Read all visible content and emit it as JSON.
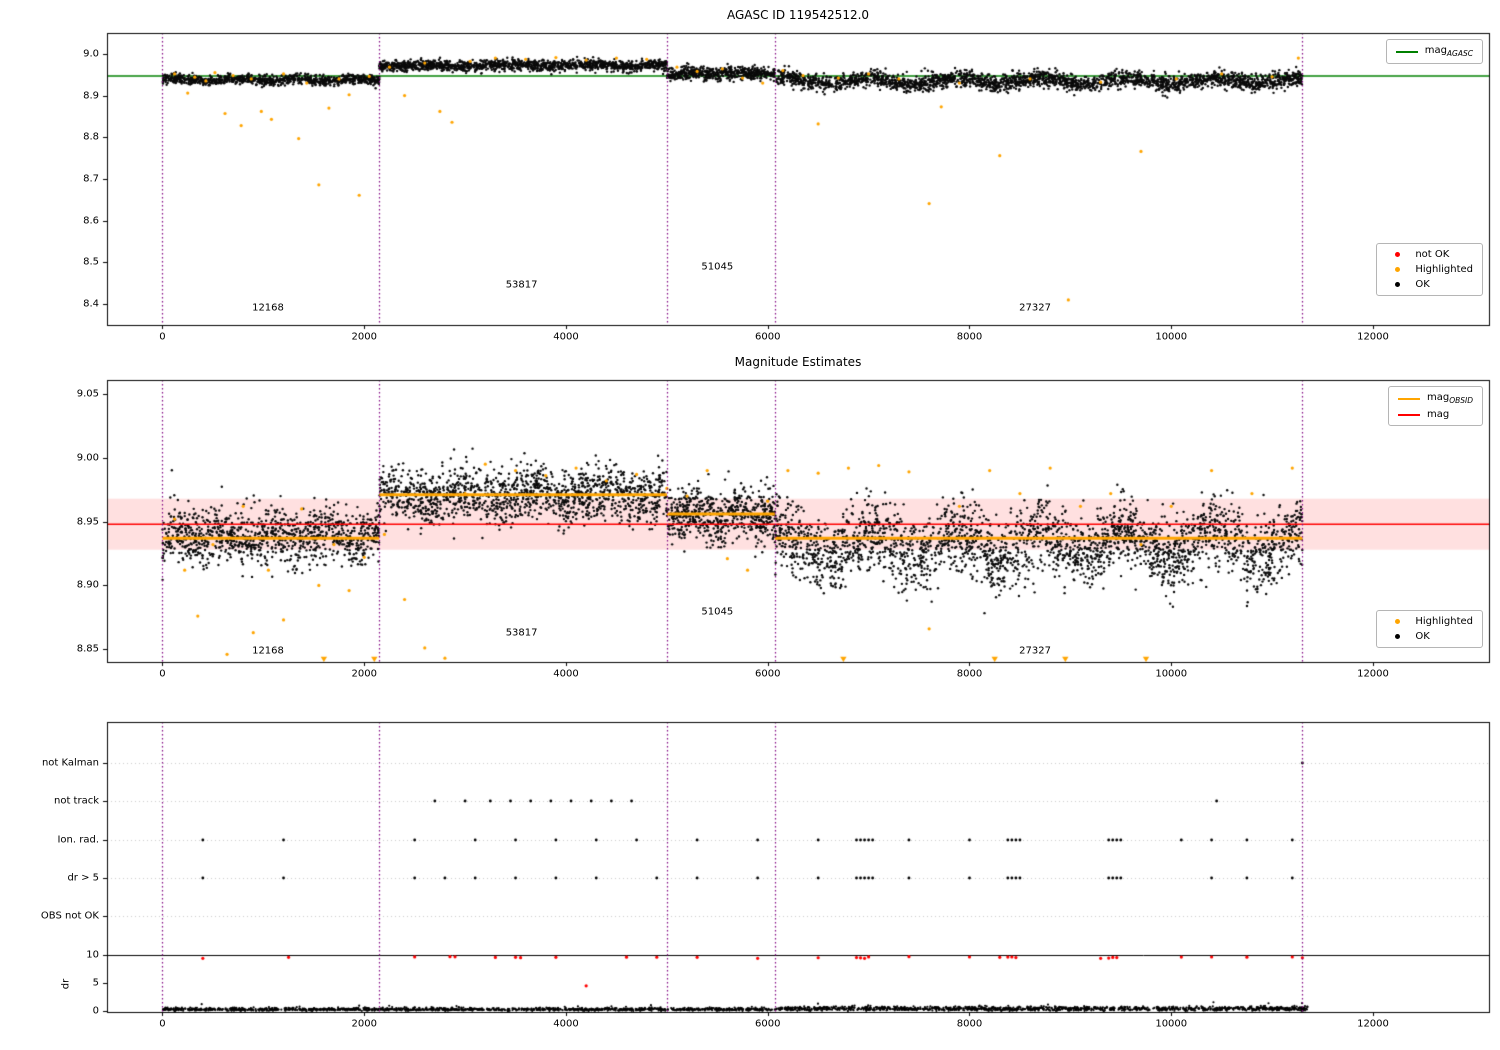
{
  "colors": {
    "ok": "#0a0a0a",
    "highlighted": "#ffa500",
    "not_ok": "#ff0000",
    "mag_agasc": "#008000",
    "mag": "#ff0000",
    "mag_obsid": "#ffa500",
    "boundary": "#800080",
    "band": "rgba(255,0,0,0.12)"
  },
  "chart_data": [
    {
      "type": "scatter",
      "title": "AGASC ID 119542512.0",
      "xlim": [
        -550,
        13150
      ],
      "ylim": [
        8.35,
        9.05
      ],
      "xticks": [
        0,
        2000,
        4000,
        6000,
        8000,
        10000,
        12000
      ],
      "xtick_labels": [
        "0",
        "2000",
        "4000",
        "6000",
        "8000",
        "10000",
        "12000"
      ],
      "yticks": [
        9.0,
        8.9,
        8.8,
        8.7,
        8.6,
        8.5,
        8.4
      ],
      "ytick_labels": [
        "9.0",
        "8.9",
        "8.8",
        "8.7",
        "8.6",
        "8.5",
        "8.4"
      ],
      "mag_agasc_line": {
        "value": 8.947,
        "color": "#008000"
      },
      "obsid_boundaries": [
        0,
        2150,
        5000,
        6070,
        11300
      ],
      "segments": [
        {
          "x0": 0,
          "x1": 2150,
          "n": 950,
          "mean": 8.938,
          "std": 0.006,
          "wave_amp": 0.003,
          "wave_period": 600
        },
        {
          "x0": 2150,
          "x1": 5000,
          "n": 1350,
          "mean": 8.972,
          "std": 0.0065,
          "wave_amp": 0.002,
          "wave_period": 800
        },
        {
          "x0": 5000,
          "x1": 6070,
          "n": 560,
          "mean": 8.953,
          "std": 0.008,
          "wave_amp": 0.002,
          "wave_period": 400
        },
        {
          "x0": 6070,
          "x1": 11300,
          "n": 2450,
          "mean": 8.935,
          "std": 0.01,
          "wave_amp": 0.007,
          "wave_period": 850
        }
      ],
      "highlighted": [
        [
          120,
          8.952
        ],
        [
          250,
          8.906
        ],
        [
          320,
          8.944
        ],
        [
          430,
          8.935
        ],
        [
          520,
          8.955
        ],
        [
          620,
          8.857
        ],
        [
          700,
          8.948
        ],
        [
          780,
          8.828
        ],
        [
          880,
          8.94
        ],
        [
          980,
          8.862
        ],
        [
          1080,
          8.843
        ],
        [
          1200,
          8.952
        ],
        [
          1350,
          8.797
        ],
        [
          1430,
          8.93
        ],
        [
          1550,
          8.686
        ],
        [
          1650,
          8.87
        ],
        [
          1750,
          8.94
        ],
        [
          1850,
          8.902
        ],
        [
          1950,
          8.661
        ],
        [
          2050,
          8.946
        ],
        [
          2250,
          8.968
        ],
        [
          2400,
          8.9
        ],
        [
          2600,
          8.978
        ],
        [
          2750,
          8.862
        ],
        [
          2870,
          8.836
        ],
        [
          3050,
          8.982
        ],
        [
          3300,
          8.99
        ],
        [
          3600,
          8.987
        ],
        [
          3900,
          8.991
        ],
        [
          4200,
          8.985
        ],
        [
          4500,
          8.99
        ],
        [
          4800,
          8.987
        ],
        [
          5100,
          8.968
        ],
        [
          5300,
          8.958
        ],
        [
          5550,
          8.964
        ],
        [
          5750,
          8.942
        ],
        [
          5950,
          8.93
        ],
        [
          6150,
          8.96
        ],
        [
          6350,
          8.948
        ],
        [
          6500,
          8.832
        ],
        [
          6700,
          8.942
        ],
        [
          7000,
          8.952
        ],
        [
          7300,
          8.94
        ],
        [
          7600,
          8.641
        ],
        [
          7720,
          8.873
        ],
        [
          7900,
          8.93
        ],
        [
          8300,
          8.756
        ],
        [
          8600,
          8.94
        ],
        [
          8980,
          8.41
        ],
        [
          9300,
          8.932
        ],
        [
          9700,
          8.766
        ],
        [
          10050,
          8.94
        ],
        [
          10500,
          8.952
        ],
        [
          11000,
          8.945
        ],
        [
          11260,
          8.99
        ]
      ],
      "annotations": [
        {
          "text": "12168",
          "x": 1046,
          "y": 8.391
        },
        {
          "text": "53817",
          "x": 3560,
          "y": 8.446
        },
        {
          "text": "51045",
          "x": 5500,
          "y": 8.489
        },
        {
          "text": "27327",
          "x": 8650,
          "y": 8.391
        }
      ],
      "legend_top": [
        {
          "glyph": "line",
          "color": "#008000",
          "label": "mag",
          "sub": "AGASC"
        }
      ],
      "legend_bottom": [
        {
          "glyph": "dot",
          "color": "#ff0000",
          "label": "not OK"
        },
        {
          "glyph": "dot",
          "color": "#ffa500",
          "label": "Highlighted"
        },
        {
          "glyph": "dot",
          "color": "#000000",
          "label": "OK"
        }
      ]
    },
    {
      "type": "scatter",
      "title": "Magnitude Estimates",
      "xlim": [
        -550,
        13150
      ],
      "ylim": [
        8.84,
        9.061
      ],
      "xticks": [
        0,
        2000,
        4000,
        6000,
        8000,
        10000,
        12000
      ],
      "xtick_labels": [
        "0",
        "2000",
        "4000",
        "6000",
        "8000",
        "10000",
        "12000"
      ],
      "yticks": [
        9.05,
        9.0,
        8.95,
        8.9,
        8.85
      ],
      "ytick_labels": [
        "9.05",
        "9.00",
        "8.95",
        "8.90",
        "8.85"
      ],
      "mag_line": {
        "value": 8.948,
        "color": "#ff0000",
        "band": [
          8.928,
          8.968
        ]
      },
      "obsid_lines": [
        {
          "x0": 0,
          "x1": 2150,
          "y": 8.937
        },
        {
          "x0": 2150,
          "x1": 5000,
          "y": 8.971
        },
        {
          "x0": 5000,
          "x1": 6070,
          "y": 8.956
        },
        {
          "x0": 6070,
          "x1": 11300,
          "y": 8.937
        }
      ],
      "obsid_boundaries": [
        0,
        2150,
        5000,
        6070,
        11300
      ],
      "segments": [
        {
          "x0": 0,
          "x1": 2150,
          "n": 1000,
          "mean": 8.938,
          "std": 0.011,
          "wave_amp": 0.003,
          "wave_period": 500
        },
        {
          "x0": 2150,
          "x1": 5000,
          "n": 1400,
          "mean": 8.971,
          "std": 0.011,
          "wave_amp": 0.003,
          "wave_period": 700
        },
        {
          "x0": 5000,
          "x1": 6070,
          "n": 600,
          "mean": 8.955,
          "std": 0.01,
          "wave_amp": 0.003,
          "wave_period": 400
        },
        {
          "x0": 6070,
          "x1": 11300,
          "n": 2500,
          "mean": 8.932,
          "std": 0.014,
          "wave_amp": 0.01,
          "wave_period": 850
        }
      ],
      "low_outliers_x": [
        1600,
        2100,
        6750,
        8250,
        8950,
        9750
      ],
      "highlighted": [
        [
          120,
          8.952
        ],
        [
          220,
          8.912
        ],
        [
          350,
          8.876
        ],
        [
          500,
          8.932
        ],
        [
          640,
          8.846
        ],
        [
          800,
          8.962
        ],
        [
          900,
          8.863
        ],
        [
          1050,
          8.912
        ],
        [
          1200,
          8.873
        ],
        [
          1380,
          8.96
        ],
        [
          1550,
          8.9
        ],
        [
          1700,
          8.932
        ],
        [
          1850,
          8.896
        ],
        [
          2000,
          8.922
        ],
        [
          2200,
          8.94
        ],
        [
          2400,
          8.889
        ],
        [
          2600,
          8.851
        ],
        [
          2800,
          8.843
        ],
        [
          3000,
          8.972
        ],
        [
          3200,
          8.995
        ],
        [
          3500,
          8.99
        ],
        [
          3800,
          8.986
        ],
        [
          4100,
          8.992
        ],
        [
          4400,
          8.982
        ],
        [
          4700,
          8.987
        ],
        [
          5000,
          8.976
        ],
        [
          5200,
          8.97
        ],
        [
          5400,
          8.99
        ],
        [
          5600,
          8.921
        ],
        [
          5800,
          8.912
        ],
        [
          6000,
          8.966
        ],
        [
          6200,
          8.99
        ],
        [
          6500,
          8.988
        ],
        [
          6800,
          8.992
        ],
        [
          7100,
          8.994
        ],
        [
          7400,
          8.989
        ],
        [
          7600,
          8.866
        ],
        [
          7900,
          8.962
        ],
        [
          8200,
          8.99
        ],
        [
          8500,
          8.972
        ],
        [
          8800,
          8.992
        ],
        [
          9100,
          8.962
        ],
        [
          9400,
          8.972
        ],
        [
          9700,
          8.932
        ],
        [
          10000,
          8.962
        ],
        [
          10400,
          8.99
        ],
        [
          10800,
          8.972
        ],
        [
          11200,
          8.992
        ]
      ],
      "annotations": [
        {
          "text": "12168",
          "x": 1046,
          "y": 8.849
        },
        {
          "text": "53817",
          "x": 3560,
          "y": 8.863
        },
        {
          "text": "51045",
          "x": 5500,
          "y": 8.879
        },
        {
          "text": "27327",
          "x": 8650,
          "y": 8.849
        }
      ],
      "legend_top": [
        {
          "glyph": "line",
          "color": "#ffa500",
          "label": "mag",
          "sub": "OBSID"
        },
        {
          "glyph": "line",
          "color": "#ff0000",
          "label": "mag"
        }
      ],
      "legend_bottom": [
        {
          "glyph": "dot",
          "color": "#ffa500",
          "label": "Highlighted"
        },
        {
          "glyph": "dot",
          "color": "#000000",
          "label": "OK"
        }
      ]
    },
    {
      "type": "flags",
      "rows": [
        "not Kalman",
        "not track",
        "Ion. rad.",
        "dr > 5",
        "OBS not OK"
      ],
      "row_points": {
        "not Kalman": [
          11300
        ],
        "not track": [
          2700,
          3000,
          3250,
          3450,
          3650,
          3850,
          4050,
          4250,
          4450,
          4650,
          10450
        ],
        "Ion. rad.": [
          400,
          1200,
          2500,
          3100,
          3500,
          3900,
          4300,
          4700,
          5300,
          5900,
          6500,
          6880,
          6920,
          6960,
          7000,
          7040,
          7400,
          8000,
          8380,
          8420,
          8460,
          8500,
          9380,
          9420,
          9460,
          9500,
          10100,
          10400,
          10750,
          11200
        ],
        "dr > 5": [
          400,
          1200,
          2500,
          2800,
          3100,
          3500,
          3900,
          4300,
          4900,
          5300,
          5900,
          6500,
          6880,
          6920,
          6960,
          7000,
          7040,
          7400,
          8000,
          8380,
          8420,
          8460,
          8500,
          9380,
          9420,
          9460,
          9500,
          10400,
          10750,
          11200
        ],
        "OBS not OK": []
      },
      "obsid_boundaries": [
        0,
        2150,
        5000,
        6070,
        11300
      ],
      "xticks": [
        0,
        2000,
        4000,
        6000,
        8000,
        10000,
        12000
      ],
      "xtick_labels": [
        "0",
        "2000",
        "4000",
        "6000",
        "8000",
        "10000",
        "12000"
      ],
      "dr": {
        "ylabel": "dr",
        "yticks": [
          10,
          5,
          0
        ],
        "ytick_labels": [
          "10",
          "5",
          "0"
        ],
        "threshold": 10,
        "series": {
          "n": 2600,
          "x0": 0,
          "x1": 11350,
          "split": 6100
        },
        "red_at_threshold": [
          400,
          1250,
          2500,
          2850,
          2900,
          3300,
          3500,
          3550,
          3900,
          4600,
          4900,
          5300,
          5900,
          6500,
          6880,
          6920,
          6960,
          7000,
          7400,
          8000,
          8300,
          8380,
          8420,
          8460,
          9300,
          9380,
          9420,
          9460,
          10100,
          10400,
          10750,
          11200,
          11300
        ],
        "red_other": [
          [
            4200,
            4.5
          ]
        ]
      }
    }
  ]
}
